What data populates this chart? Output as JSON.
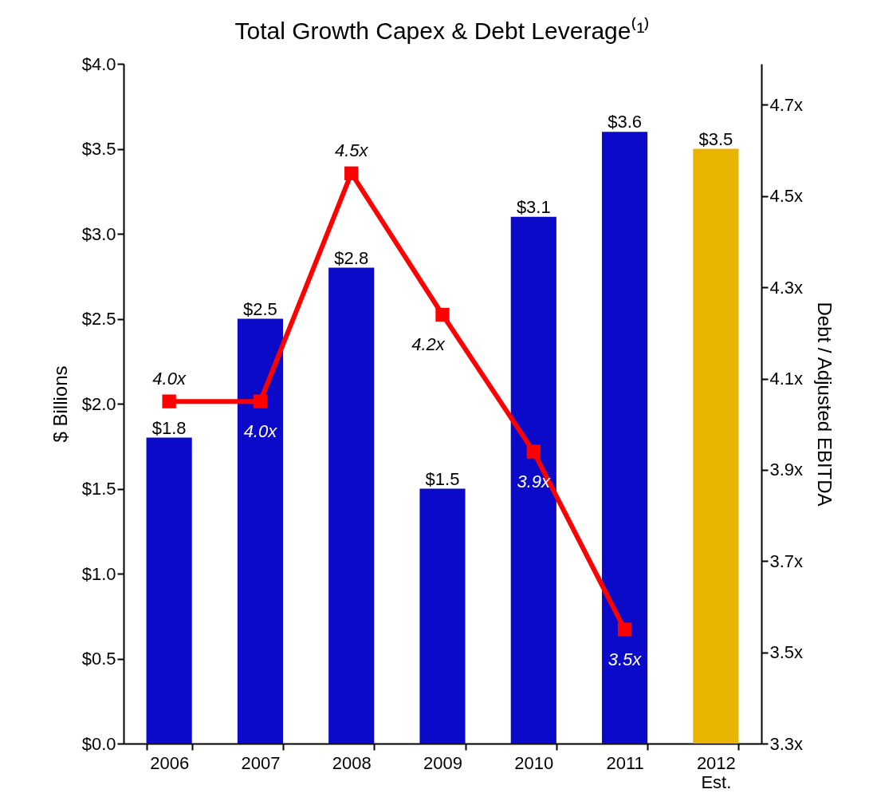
{
  "chart_data": {
    "type": "bar",
    "title": "Total Growth Capex & Debt Leverage⁽¹⁾",
    "ylabel": "$ Billions",
    "y2label": "Debt / Adjusted EBITDA",
    "categories": [
      "2006",
      "2007",
      "2008",
      "2009",
      "2010",
      "2011",
      "2012\nEst."
    ],
    "series": [
      {
        "colors": [
          "#0a0ac8",
          "#0a0ac8",
          "#0a0ac8",
          "#0a0ac8",
          "#0a0ac8",
          "#0a0ac8",
          "#e8b400"
        ],
        "values": [
          1.8,
          2.5,
          2.8,
          1.5,
          3.1,
          3.6,
          3.5
        ],
        "value_labels": [
          "$1.8",
          "$2.5",
          "$2.8",
          "$1.5",
          "$3.1",
          "$3.6",
          "$3.5"
        ]
      },
      {
        "type": "line",
        "axis": "y2",
        "color": "#ff0000",
        "marker": "square",
        "values": [
          4.05,
          4.05,
          4.55,
          4.24,
          3.94,
          3.55,
          null
        ],
        "value_labels": [
          "4.0x",
          "4.0x",
          "4.5x",
          "4.2x",
          "3.9x",
          "3.5x",
          null
        ]
      }
    ],
    "ylim": [
      0,
      4.0
    ],
    "yticks": [
      {
        "value": 0,
        "label": "$0.0"
      },
      {
        "value": 0.5,
        "label": "$0.5"
      },
      {
        "value": 1.0,
        "label": "$1.0"
      },
      {
        "value": 1.5,
        "label": "$1.5"
      },
      {
        "value": 2.0,
        "label": "$2.0"
      },
      {
        "value": 2.5,
        "label": "$2.5"
      },
      {
        "value": 3.0,
        "label": "$3.0"
      },
      {
        "value": 3.5,
        "label": "$3.5"
      },
      {
        "value": 4.0,
        "label": "$4.0"
      }
    ],
    "y2lim": [
      3.3,
      4.79
    ],
    "y2ticks": [
      {
        "value": 3.3,
        "label": "3.3x"
      },
      {
        "value": 3.5,
        "label": "3.5x"
      },
      {
        "value": 3.7,
        "label": "3.7x"
      },
      {
        "value": 3.9,
        "label": "3.9x"
      },
      {
        "value": 4.1,
        "label": "4.1x"
      },
      {
        "value": 4.3,
        "label": "4.3x"
      },
      {
        "value": 4.5,
        "label": "4.5x"
      },
      {
        "value": 4.7,
        "label": "4.7x"
      }
    ],
    "grid": false
  }
}
